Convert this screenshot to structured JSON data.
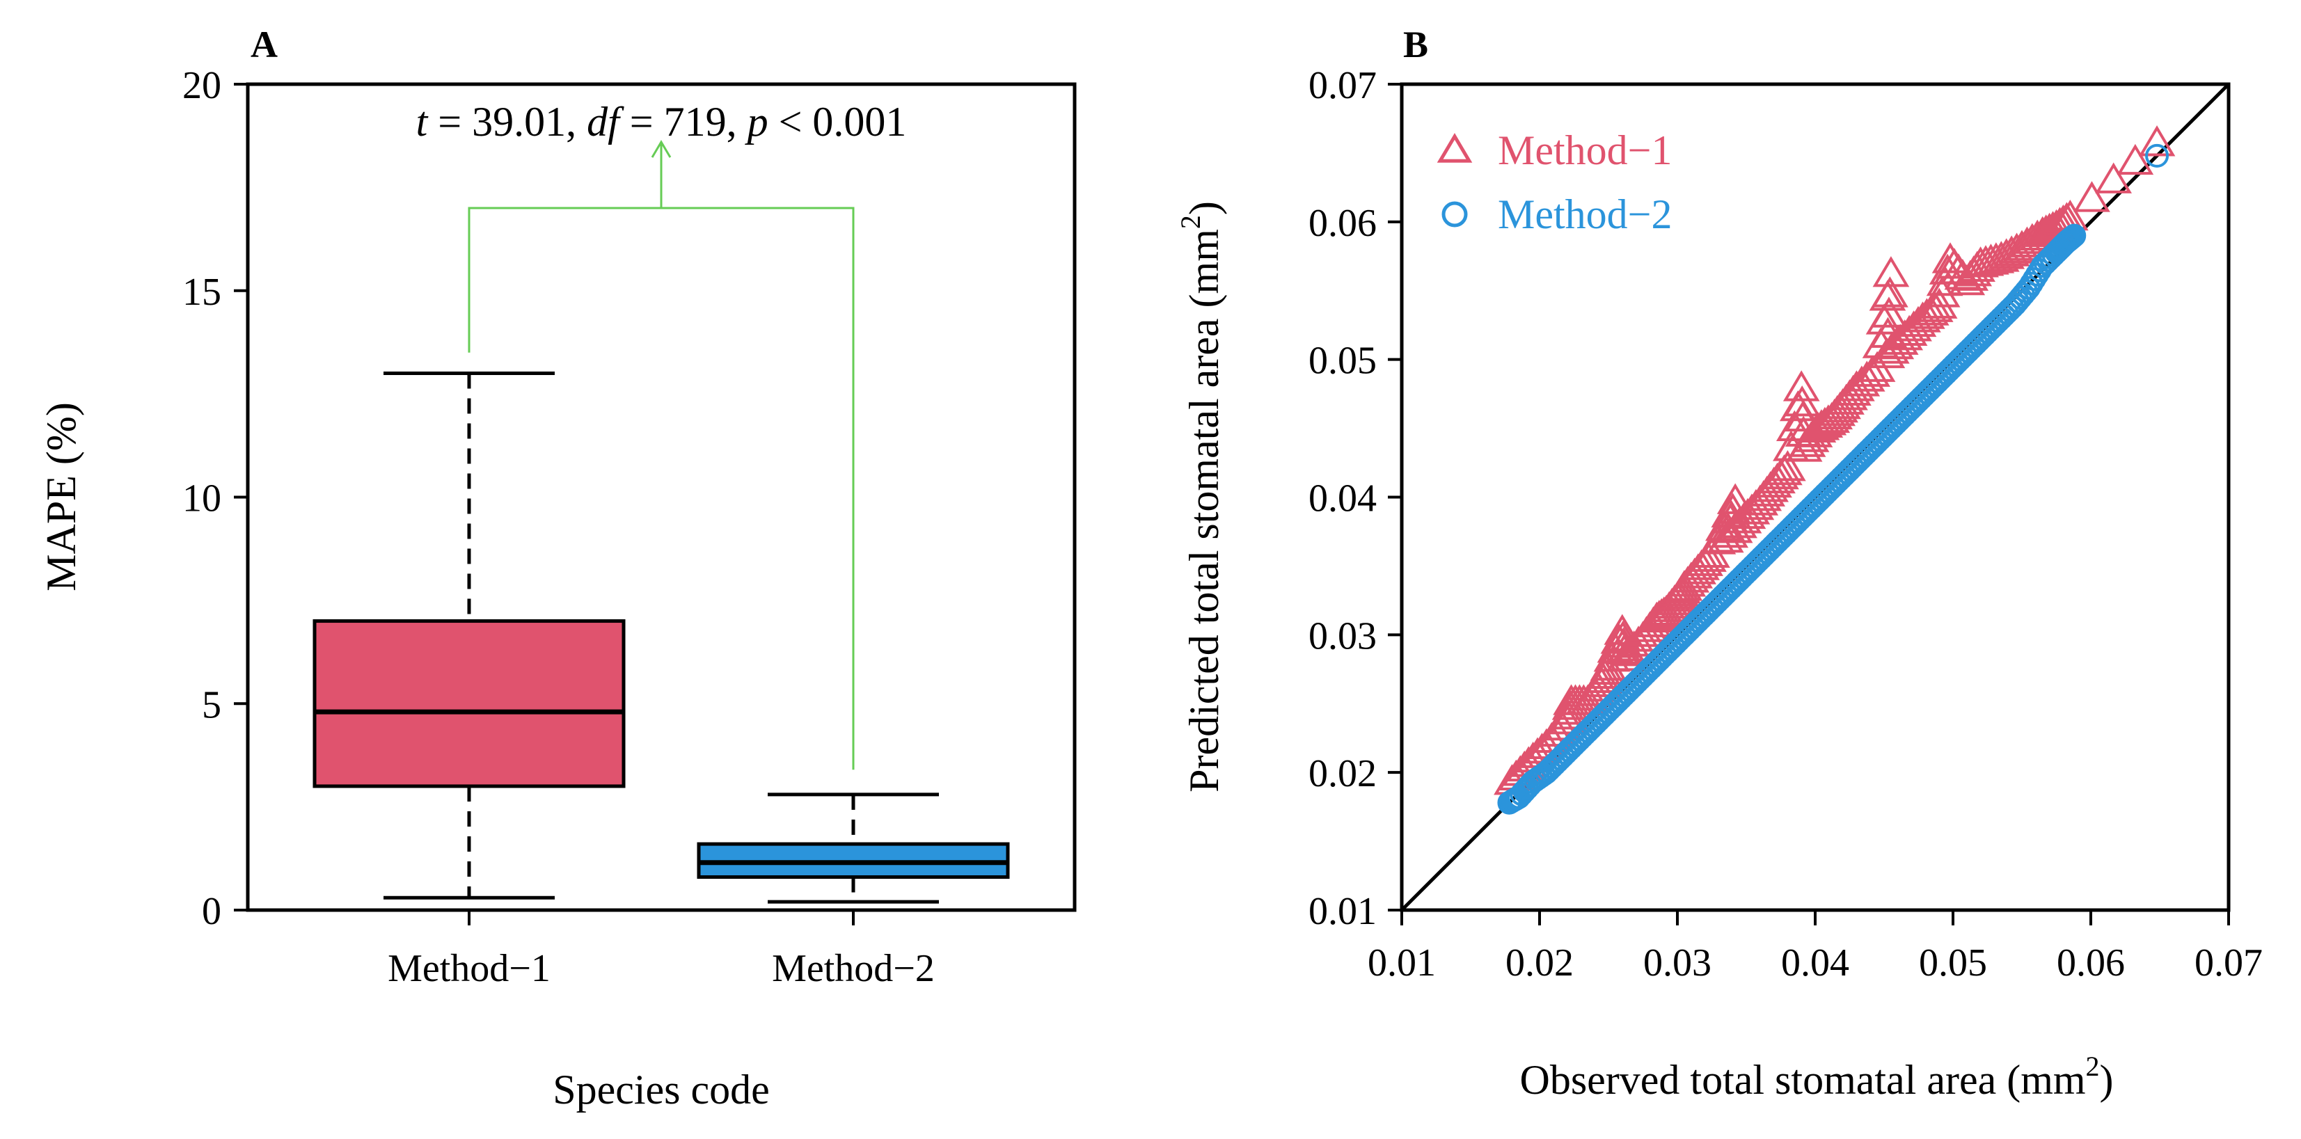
{
  "colors": {
    "method1": "#e0536e",
    "method2": "#2b94db",
    "bracket": "#66cc55",
    "axis": "#000000"
  },
  "chart_data": [
    {
      "panel": "A",
      "type": "boxplot",
      "xlabel": "Species code",
      "ylabel": "MAPE (%)",
      "ylim": [
        0,
        20
      ],
      "yticks": [
        "0",
        "5",
        "10",
        "15",
        "20"
      ],
      "categories": [
        "Method−1",
        "Method−2"
      ],
      "boxes": [
        {
          "name": "Method−1",
          "whisker_low": 0.3,
          "q1": 3.0,
          "median": 4.8,
          "q3": 7.0,
          "whisker_high": 13.0
        },
        {
          "name": "Method−2",
          "whisker_low": 0.2,
          "q1": 0.8,
          "median": 1.15,
          "q3": 1.6,
          "whisker_high": 2.8
        }
      ],
      "test_parts": [
        "t",
        " = 39.01, ",
        "df",
        " = 719, ",
        "p",
        " < 0.001"
      ]
    },
    {
      "panel": "B",
      "type": "scatter",
      "xlabel_main": "Observed total stomatal area (mm",
      "xlabel_sup": "2",
      "xlabel_tail": ")",
      "ylabel_main": "Predicted total stomatal area (mm",
      "ylabel_sup": "2",
      "ylabel_tail": ")",
      "xlim": [
        0.01,
        0.07
      ],
      "ylim": [
        0.01,
        0.07
      ],
      "xticks": [
        "0.01",
        "0.02",
        "0.03",
        "0.04",
        "0.05",
        "0.06",
        "0.07"
      ],
      "yticks": [
        "0.01",
        "0.02",
        "0.03",
        "0.04",
        "0.05",
        "0.06",
        "0.07"
      ],
      "reference_line": "1:1",
      "legend": [
        {
          "name": "Method−1",
          "marker": "triangle"
        },
        {
          "name": "Method−2",
          "marker": "circle"
        }
      ],
      "series": [
        {
          "name": "Method−1",
          "marker": "triangle",
          "points": [
            [
              0.018,
              0.0192
            ],
            [
              0.0192,
              0.0205
            ],
            [
              0.0205,
              0.0218
            ],
            [
              0.022,
              0.0236
            ],
            [
              0.0223,
              0.025
            ],
            [
              0.0235,
              0.025
            ],
            [
              0.0245,
              0.0263
            ],
            [
              0.025,
              0.0275
            ],
            [
              0.026,
              0.0301
            ],
            [
              0.0262,
              0.0282
            ],
            [
              0.0275,
              0.0296
            ],
            [
              0.0285,
              0.031
            ],
            [
              0.0292,
              0.0315
            ],
            [
              0.03,
              0.0325
            ],
            [
              0.0305,
              0.0333
            ],
            [
              0.0315,
              0.0345
            ],
            [
              0.0325,
              0.0357
            ],
            [
              0.0342,
              0.0396
            ],
            [
              0.0335,
              0.0368
            ],
            [
              0.0348,
              0.0382
            ],
            [
              0.036,
              0.0395
            ],
            [
              0.037,
              0.0408
            ],
            [
              0.038,
              0.042
            ],
            [
              0.039,
              0.0478
            ],
            [
              0.0392,
              0.0434
            ],
            [
              0.0402,
              0.0448
            ],
            [
              0.0412,
              0.0455
            ],
            [
              0.042,
              0.0465
            ],
            [
              0.043,
              0.0478
            ],
            [
              0.0445,
              0.0492
            ],
            [
              0.0455,
              0.0561
            ],
            [
              0.0452,
              0.0502
            ],
            [
              0.0465,
              0.0515
            ],
            [
              0.0478,
              0.0528
            ],
            [
              0.049,
              0.0538
            ],
            [
              0.0498,
              0.0571
            ],
            [
              0.051,
              0.0555
            ],
            [
              0.052,
              0.0568
            ],
            [
              0.0535,
              0.0572
            ],
            [
              0.055,
              0.058
            ],
            [
              0.0565,
              0.059
            ],
            [
              0.0575,
              0.0595
            ],
            [
              0.0585,
              0.0602
            ],
            [
              0.0648,
              0.0656
            ]
          ]
        },
        {
          "name": "Method−2",
          "marker": "circle",
          "points": [
            [
              0.0178,
              0.0178
            ],
            [
              0.0185,
              0.0182
            ],
            [
              0.0195,
              0.0193
            ],
            [
              0.0205,
              0.02
            ],
            [
              0.0215,
              0.021
            ],
            [
              0.0225,
              0.022
            ],
            [
              0.0235,
              0.023
            ],
            [
              0.0245,
              0.024
            ],
            [
              0.0255,
              0.025
            ],
            [
              0.0265,
              0.026
            ],
            [
              0.0275,
              0.027
            ],
            [
              0.0285,
              0.028
            ],
            [
              0.0295,
              0.029
            ],
            [
              0.0305,
              0.03
            ],
            [
              0.0315,
              0.031
            ],
            [
              0.0325,
              0.032
            ],
            [
              0.0335,
              0.033
            ],
            [
              0.0345,
              0.034
            ],
            [
              0.0355,
              0.035
            ],
            [
              0.0365,
              0.036
            ],
            [
              0.0375,
              0.037
            ],
            [
              0.0385,
              0.038
            ],
            [
              0.0395,
              0.039
            ],
            [
              0.0405,
              0.04
            ],
            [
              0.0415,
              0.041
            ],
            [
              0.0425,
              0.042
            ],
            [
              0.0435,
              0.043
            ],
            [
              0.0445,
              0.044
            ],
            [
              0.0455,
              0.045
            ],
            [
              0.0465,
              0.046
            ],
            [
              0.0475,
              0.047
            ],
            [
              0.0485,
              0.048
            ],
            [
              0.0495,
              0.049
            ],
            [
              0.0505,
              0.05
            ],
            [
              0.0515,
              0.051
            ],
            [
              0.0525,
              0.052
            ],
            [
              0.0535,
              0.053
            ],
            [
              0.0545,
              0.054
            ],
            [
              0.0555,
              0.0552
            ],
            [
              0.0565,
              0.0568
            ],
            [
              0.0575,
              0.0578
            ],
            [
              0.0582,
              0.0585
            ],
            [
              0.0588,
              0.059
            ],
            [
              0.0648,
              0.0648
            ]
          ]
        }
      ]
    }
  ]
}
